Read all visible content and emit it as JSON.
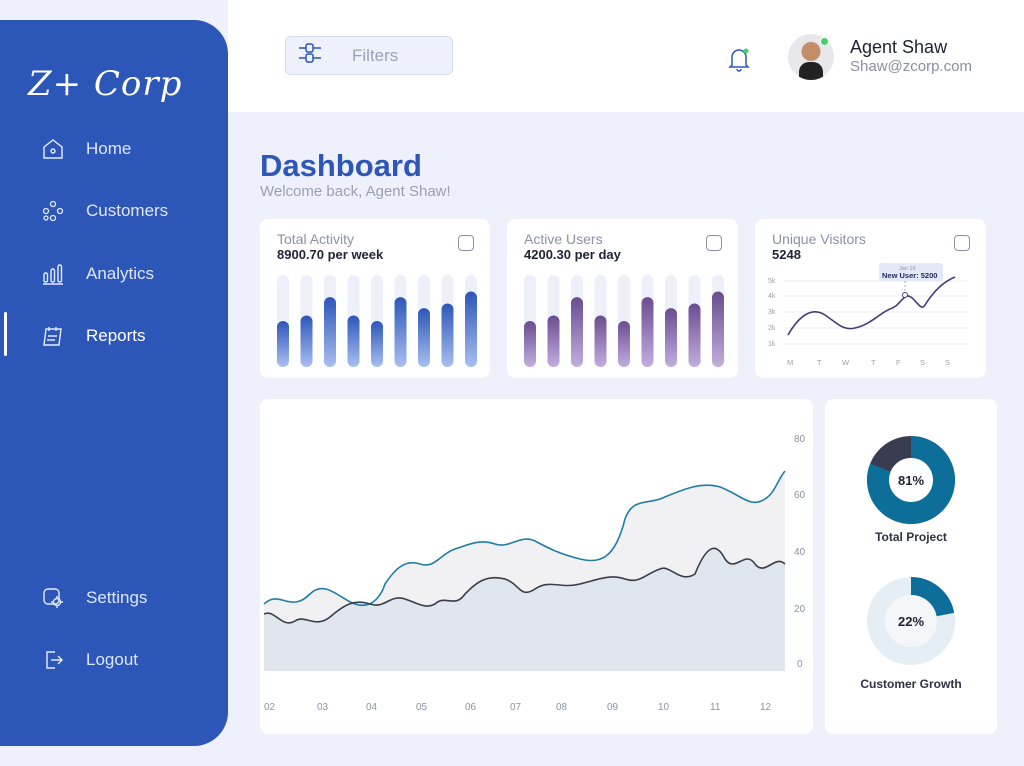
{
  "sidebar": {
    "logo": "Z+ Corp",
    "items": [
      {
        "label": "Home",
        "icon": "home-icon"
      },
      {
        "label": "Customers",
        "icon": "customers-icon"
      },
      {
        "label": "Analytics",
        "icon": "analytics-icon"
      },
      {
        "label": "Reports",
        "icon": "reports-icon"
      }
    ],
    "bottom_items": [
      {
        "label": "Settings",
        "icon": "gear-icon"
      },
      {
        "label": "Logout",
        "icon": "logout-icon"
      }
    ]
  },
  "header": {
    "filter_label": "Filters",
    "user": {
      "name": "Agent Shaw",
      "email": "Shaw@zcorp.com"
    }
  },
  "page": {
    "title": "Dashboard",
    "subtitle": "Welcome back, Agent Shaw!"
  },
  "cards": [
    {
      "title": "Total Activity",
      "value": "8900.70 per week",
      "bar_color": "#2c56b8",
      "bar_fill": [
        0.5,
        0.56,
        0.76,
        0.56,
        0.5,
        0.76,
        0.64,
        0.69,
        0.82
      ]
    },
    {
      "title": "Active Users",
      "value": "4200.30 per day",
      "bar_color": "#6a4c8f",
      "bar_fill": [
        0.5,
        0.56,
        0.76,
        0.56,
        0.5,
        0.76,
        0.64,
        0.69,
        0.82
      ]
    },
    {
      "title": "Unique Visitors",
      "value": "5248"
    }
  ],
  "visitors_chart": {
    "tooltip_date": "Jan 19",
    "tooltip_text": "New User: 5200",
    "y_ticks": [
      "5k",
      "4k",
      "3k",
      "2k",
      "1k"
    ],
    "x_ticks": [
      "M",
      "T",
      "W",
      "T",
      "F",
      "S",
      "S"
    ]
  },
  "main_chart": {
    "y_ticks": [
      "80",
      "60",
      "40",
      "20",
      "0"
    ],
    "x_ticks": [
      "02",
      "03",
      "04",
      "05",
      "06",
      "07",
      "08",
      "09",
      "10",
      "11",
      "12"
    ]
  },
  "donuts": [
    {
      "value": "81%",
      "label": "Total Project",
      "fraction": 0.81,
      "color": "#0e6e9a",
      "rest_color": "#3a3d52"
    },
    {
      "value": "22%",
      "label": "Customer Growth",
      "fraction": 0.22,
      "color": "#0e6e9a",
      "rest_color": "#e4eef4"
    }
  ]
}
